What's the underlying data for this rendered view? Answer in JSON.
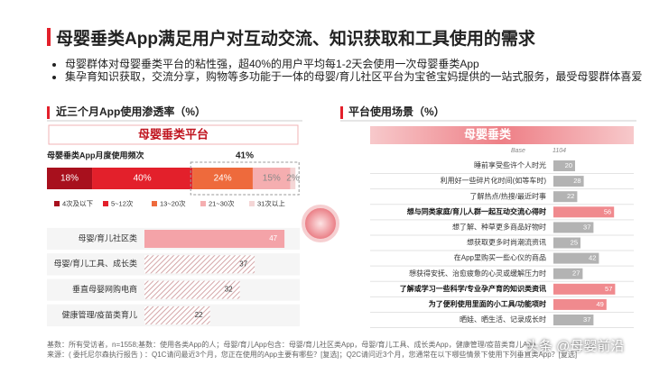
{
  "title": "母婴垂类App满足用户对互动交流、知识获取和工具使用的需求",
  "bullets": [
    "母婴群体对母婴垂类平台的粘性强，超40%的用户平均每1-2天会使用一次母婴垂类App",
    "集孕育知识获取，交流分享，购物等多功能于一体的母婴/育儿社区平台为宝爸宝妈提供的一站式服务，最受母婴群体喜爱"
  ],
  "footnotes": [
    "基数：所有受访者，n=1558;基数：使用各类App的人；母婴/育儿App包含：母婴/育儿社区类App，母婴/育儿工具、成长类App，健康管理/疫苗类育儿App",
    "来源：( 委托尼尔森执行报告 ) ：Q1C请问最近3个月，您正在使用的App主要有哪些？[复选]；Q2C请问近3个月，您通常在以下哪些情景下使用下列垂直类App？[复选]"
  ],
  "watermark": "头条 @母婴前沿",
  "chart_data": [
    {
      "type": "stacked_bar",
      "section_title": "近三个月App使用渗透率（%）",
      "banner": "母婴垂类平台",
      "title": "母婴垂类App月度使用频次",
      "annotation": "41%",
      "xlim": [
        0,
        100
      ],
      "series": [
        {
          "name": "4次及以下",
          "color": "#a8101d",
          "values": [
            18
          ],
          "value_labels": [
            "18%"
          ]
        },
        {
          "name": "5~12次",
          "color": "#e3202b",
          "values": [
            40
          ],
          "value_labels": [
            "40%"
          ]
        },
        {
          "name": "13~20次",
          "color": "#ee6a3c",
          "values": [
            24
          ],
          "value_labels": [
            "24%"
          ]
        },
        {
          "name": "21~30次",
          "color": "#f5aeb0",
          "values": [
            15
          ],
          "value_labels": [
            "15%"
          ]
        },
        {
          "name": "31次以上",
          "color": "#f4d6d6",
          "values": [
            2
          ],
          "value_labels": [
            "2%"
          ]
        }
      ]
    },
    {
      "type": "hbar",
      "categories": [
        "母婴/育儿社区类",
        "母婴/育儿工具、成长类",
        "垂直母婴网购电商",
        "健康管理/疫苗类育儿"
      ],
      "values": [
        47,
        37,
        32,
        22
      ],
      "colors": [
        "#f4a3a8",
        "#d9b0b0",
        "#d9b0b0",
        "#d9b0b0"
      ],
      "hatched": [
        false,
        true,
        true,
        true
      ],
      "xlim": [
        0,
        50
      ]
    },
    {
      "type": "hbar",
      "section_title": "平台使用场景（%）",
      "banner": "母婴垂类",
      "base_label": "Base",
      "base_value": 1104,
      "categories": [
        "睡前享受些许个人时光",
        "利用好一些碎片化时间(如等车时)",
        "了解热点/热搜/最近时事",
        "想与同类家庭/育儿人群一起互动交流心得时",
        "想了解、种草更多商品好物时",
        "想获取更多时尚潮流资讯",
        "在App里购买一些心仪的商品",
        "想获得安抚、治愈疲惫的心灵或缓解压力时",
        "了解或学习一些科学/专业孕产育的知识类资讯",
        "为了便利使用里面的小工具/功能项时",
        "晒娃、晒生活、记录成长时"
      ],
      "values": [
        20,
        28,
        22,
        56,
        37,
        25,
        42,
        27,
        57,
        49,
        37
      ],
      "colors": [
        "#b3b3b3",
        "#b3b3b3",
        "#b3b3b3",
        "#f08a8e",
        "#b3b3b3",
        "#b3b3b3",
        "#b3b3b3",
        "#b3b3b3",
        "#f08a8e",
        "#f08a8e",
        "#b3b3b3"
      ],
      "bold": [
        false,
        false,
        false,
        true,
        false,
        false,
        false,
        false,
        true,
        true,
        false
      ],
      "xlim": [
        0,
        60
      ]
    }
  ]
}
